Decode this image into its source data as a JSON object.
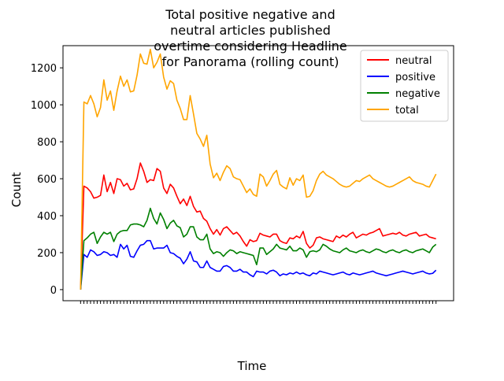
{
  "chart_data": {
    "type": "line",
    "title_lines": [
      "Total positive negative and",
      "neutral articles published",
      "overtime considering Headline",
      "for Panorama (rolling count)"
    ],
    "xlabel": "Time",
    "ylabel": "Count",
    "ylim": [
      -60,
      1320
    ],
    "yticks": [
      0,
      200,
      400,
      600,
      800,
      1000,
      1200
    ],
    "legend_position": "top-right",
    "colors": {
      "neutral": "#ff0000",
      "positive": "#0000ff",
      "negative": "#008000",
      "total": "#ffa500"
    },
    "x": [
      1,
      2,
      3,
      4,
      5,
      6,
      7,
      8,
      9,
      10,
      11,
      12,
      13,
      14,
      15,
      16,
      17,
      18,
      19,
      20,
      21,
      22,
      23,
      24,
      25,
      26,
      27,
      28,
      29,
      30,
      31,
      32,
      33,
      34,
      35,
      36,
      37,
      38,
      39,
      40,
      41,
      42,
      43,
      44,
      45,
      46,
      47,
      48,
      49,
      50,
      51,
      52,
      53,
      54,
      55,
      56,
      57,
      58,
      59,
      60,
      61,
      62,
      63,
      64,
      65,
      66,
      67,
      68,
      69,
      70,
      71,
      72,
      73,
      74,
      75,
      76,
      77,
      78,
      79,
      80,
      81,
      82,
      83,
      84,
      85,
      86,
      87,
      88,
      89,
      90,
      91,
      92,
      93,
      94,
      95,
      96,
      97,
      98,
      99,
      100,
      101,
      102,
      103,
      104,
      105,
      106,
      107,
      108
    ],
    "series": [
      {
        "name": "neutral",
        "values": [
          0,
          560,
          550,
          530,
          495,
          500,
          510,
          620,
          530,
          580,
          520,
          600,
          595,
          560,
          575,
          540,
          545,
          600,
          685,
          640,
          580,
          595,
          590,
          655,
          640,
          550,
          520,
          570,
          550,
          505,
          465,
          490,
          455,
          505,
          450,
          420,
          425,
          385,
          370,
          330,
          300,
          325,
          295,
          330,
          340,
          320,
          300,
          310,
          290,
          260,
          235,
          270,
          260,
          265,
          305,
          295,
          290,
          285,
          300,
          300,
          265,
          255,
          250,
          280,
          275,
          290,
          280,
          315,
          250,
          225,
          240,
          280,
          285,
          275,
          270,
          265,
          260,
          290,
          280,
          295,
          285,
          300,
          310,
          280,
          290,
          300,
          295,
          305,
          310,
          320,
          330,
          290,
          295,
          300,
          305,
          300,
          310,
          295,
          290,
          300,
          305,
          310,
          290,
          295,
          300,
          285,
          280,
          275
        ]
      },
      {
        "name": "positive",
        "values": [
          0,
          190,
          175,
          215,
          205,
          185,
          190,
          205,
          200,
          185,
          190,
          175,
          245,
          220,
          240,
          180,
          175,
          210,
          240,
          245,
          265,
          265,
          220,
          225,
          225,
          225,
          240,
          200,
          195,
          180,
          170,
          140,
          165,
          205,
          155,
          150,
          120,
          120,
          155,
          120,
          110,
          100,
          100,
          125,
          130,
          120,
          100,
          100,
          110,
          95,
          95,
          80,
          70,
          100,
          95,
          95,
          85,
          100,
          105,
          95,
          75,
          85,
          80,
          90,
          85,
          95,
          85,
          90,
          80,
          75,
          90,
          85,
          100,
          95,
          90,
          85,
          80,
          85,
          90,
          95,
          85,
          80,
          90,
          85,
          80,
          85,
          90,
          95,
          100,
          90,
          85,
          80,
          75,
          80,
          85,
          90,
          95,
          100,
          95,
          90,
          85,
          90,
          95,
          100,
          90,
          85,
          88,
          105
        ]
      },
      {
        "name": "negative",
        "values": [
          0,
          265,
          280,
          300,
          310,
          250,
          285,
          310,
          300,
          310,
          260,
          300,
          315,
          320,
          320,
          350,
          355,
          355,
          350,
          340,
          375,
          440,
          385,
          355,
          415,
          380,
          330,
          360,
          375,
          345,
          335,
          285,
          300,
          340,
          340,
          285,
          270,
          270,
          300,
          220,
          195,
          205,
          200,
          180,
          200,
          215,
          210,
          195,
          205,
          200,
          195,
          190,
          185,
          135,
          225,
          225,
          190,
          205,
          220,
          245,
          225,
          220,
          215,
          235,
          210,
          210,
          225,
          215,
          175,
          205,
          210,
          205,
          215,
          245,
          235,
          220,
          210,
          205,
          200,
          215,
          225,
          210,
          205,
          200,
          210,
          215,
          205,
          200,
          210,
          220,
          215,
          205,
          200,
          210,
          215,
          205,
          200,
          210,
          215,
          205,
          200,
          210,
          215,
          220,
          210,
          200,
          230,
          245
        ]
      },
      {
        "name": "total",
        "values": [
          0,
          1015,
          1005,
          1050,
          1005,
          935,
          985,
          1135,
          1025,
          1075,
          970,
          1075,
          1155,
          1100,
          1135,
          1070,
          1075,
          1160,
          1275,
          1225,
          1220,
          1300,
          1200,
          1230,
          1275,
          1150,
          1085,
          1130,
          1115,
          1025,
          980,
          920,
          920,
          1050,
          950,
          845,
          815,
          775,
          835,
          680,
          605,
          630,
          590,
          635,
          670,
          655,
          610,
          600,
          595,
          560,
          525,
          545,
          515,
          505,
          625,
          610,
          560,
          590,
          625,
          645,
          570,
          555,
          545,
          605,
          565,
          600,
          590,
          620,
          500,
          505,
          535,
          590,
          625,
          640,
          620,
          610,
          600,
          585,
          570,
          560,
          555,
          560,
          575,
          590,
          585,
          600,
          610,
          620,
          600,
          590,
          580,
          570,
          560,
          555,
          560,
          570,
          580,
          590,
          600,
          610,
          590,
          580,
          575,
          570,
          560,
          555,
          590,
          625
        ]
      }
    ]
  }
}
